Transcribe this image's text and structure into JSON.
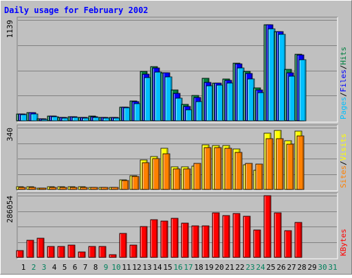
{
  "title": "Daily usage for February 2002",
  "colors": {
    "background": "#c0c0c0",
    "hits": "#008040",
    "files": "#0000ff",
    "pages": "#00c0ff",
    "visits": "#ffff00",
    "sites": "#ff8000",
    "kbytes": "#ff0000",
    "title": "#0000ff",
    "day_weekday": "#000000",
    "day_weekend": "#00805c"
  },
  "chart_data": [
    {
      "type": "bar",
      "title": "Daily usage for February 2002",
      "categories": [
        "1",
        "2",
        "3",
        "4",
        "5",
        "6",
        "7",
        "8",
        "9",
        "10",
        "11",
        "12",
        "13",
        "14",
        "15",
        "16",
        "17",
        "18",
        "19",
        "20",
        "21",
        "22",
        "23",
        "24",
        "25",
        "26",
        "27",
        "28",
        "29",
        "30",
        "31"
      ],
      "weekend_days": [
        "2",
        "3",
        "9",
        "10",
        "16",
        "17",
        "23",
        "24",
        "30",
        "31"
      ],
      "ymax_label": "1139",
      "ylim": [
        0,
        1139
      ],
      "grid": true,
      "series": [
        {
          "name": "Hits",
          "values": [
            80,
            95,
            25,
            55,
            35,
            45,
            40,
            55,
            35,
            35,
            155,
            225,
            555,
            610,
            545,
            345,
            185,
            285,
            480,
            425,
            475,
            650,
            555,
            370,
            1085,
            1010,
            580,
            750,
            0,
            0,
            0
          ]
        },
        {
          "name": "Files",
          "values": [
            80,
            95,
            25,
            55,
            35,
            45,
            35,
            50,
            35,
            35,
            155,
            215,
            525,
            595,
            545,
            310,
            165,
            260,
            435,
            425,
            460,
            645,
            535,
            350,
            1085,
            1010,
            545,
            740,
            0,
            0,
            0
          ]
        },
        {
          "name": "Pages",
          "values": [
            70,
            80,
            15,
            50,
            30,
            35,
            30,
            40,
            30,
            30,
            145,
            195,
            485,
            550,
            495,
            255,
            125,
            215,
            395,
            405,
            430,
            600,
            475,
            315,
            1035,
            980,
            505,
            690,
            0,
            0,
            0
          ]
        }
      ],
      "series_label_order": [
        "Pages",
        "Files",
        "Hits"
      ]
    },
    {
      "type": "bar",
      "ymax_label": "340",
      "ylim": [
        0,
        340
      ],
      "grid": true,
      "series": [
        {
          "name": "Visits",
          "values": [
            14,
            14,
            5,
            14,
            14,
            14,
            14,
            11,
            11,
            11,
            52,
            75,
            162,
            182,
            228,
            125,
            125,
            130,
            245,
            240,
            240,
            222,
            135,
            105,
            310,
            325,
            270,
            320,
            0,
            0,
            0
          ]
        },
        {
          "name": "Sites",
          "values": [
            12,
            12,
            4,
            12,
            12,
            12,
            12,
            10,
            10,
            10,
            48,
            70,
            148,
            170,
            195,
            115,
            115,
            145,
            230,
            230,
            225,
            205,
            145,
            140,
            278,
            278,
            250,
            295,
            0,
            0,
            0
          ]
        }
      ],
      "series_label_order": [
        "Sites",
        "Visits"
      ]
    },
    {
      "type": "bar",
      "ymax_label": "286054",
      "ylim": [
        0,
        286054
      ],
      "grid": true,
      "series": [
        {
          "name": "KBytes",
          "values": [
            32000,
            80000,
            88000,
            52000,
            52000,
            58000,
            25000,
            52000,
            52000,
            12000,
            112000,
            58000,
            142000,
            175000,
            170000,
            180000,
            160000,
            145000,
            145000,
            208000,
            195000,
            202000,
            192000,
            128000,
            286054,
            208000,
            125000,
            162000,
            0,
            0,
            0
          ]
        }
      ],
      "series_label_order": [
        "KBytes"
      ]
    }
  ]
}
